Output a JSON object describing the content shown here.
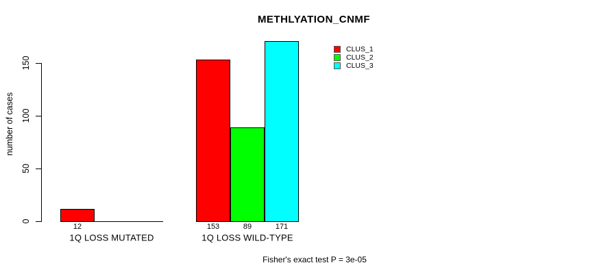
{
  "chart_data": {
    "type": "bar",
    "title": "METHLYATION_CNMF",
    "ylabel": "number of cases",
    "xlabel": "",
    "categories": [
      "1Q LOSS MUTATED",
      "1Q LOSS WILD-TYPE"
    ],
    "series": [
      {
        "name": "CLUS_1",
        "color": "#ff0000",
        "values": [
          12,
          153
        ]
      },
      {
        "name": "CLUS_2",
        "color": "#00ff00",
        "values": [
          0,
          89
        ]
      },
      {
        "name": "CLUS_3",
        "color": "#00ffff",
        "values": [
          0,
          171
        ]
      }
    ],
    "bar_value_labels": [
      [
        "12",
        "",
        ""
      ],
      [
        "153",
        "89",
        "171"
      ]
    ],
    "yticks": [
      0,
      50,
      100,
      150
    ],
    "ylim": [
      0,
      171
    ],
    "grid": false,
    "legend_position": "top-right",
    "annotation": "Fisher's exact test P = 3e-05",
    "colors": {
      "background": "#ffffff",
      "axis": "#000000",
      "text": "#000000"
    }
  }
}
